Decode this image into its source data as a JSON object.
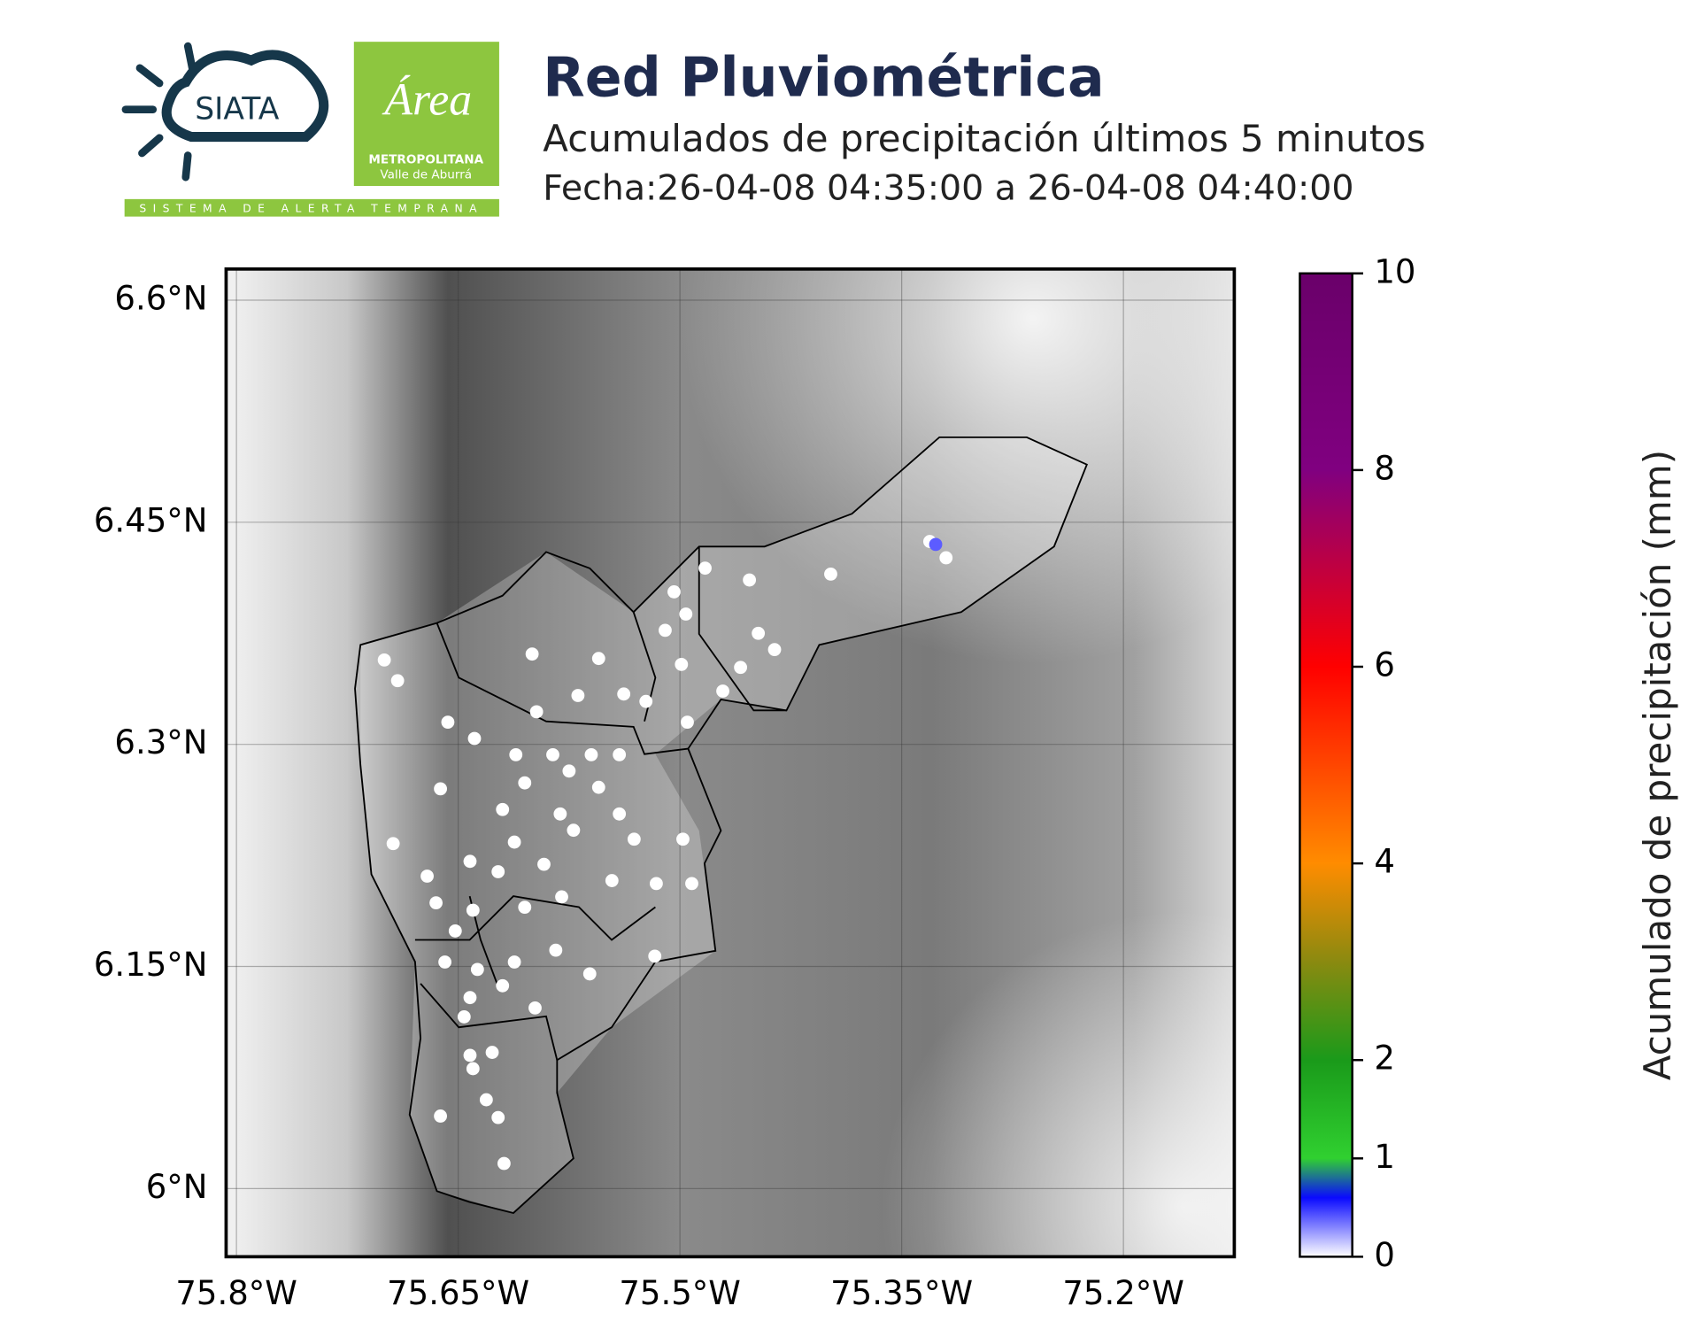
{
  "logos": {
    "siata": "SIATA",
    "area": "Área",
    "metro": "METROPOLITANA",
    "valle": "Valle de Aburrá",
    "sat": "SISTEMA DE ALERTA TEMPRANA"
  },
  "chart_data": {
    "type": "scatter",
    "title": "Red Pluviométrica",
    "subtitle": "Acumulados de precipitación últimos 5 minutos",
    "date": "Fecha:26-04-08 04:35:00 a 26-04-08 04:40:00",
    "x": [
      -75.7,
      -75.691,
      -75.657,
      -75.639,
      -75.611,
      -75.586,
      -75.56,
      -75.541,
      -75.6,
      -75.555,
      -75.597,
      -75.569,
      -75.538,
      -75.523,
      -75.504,
      -75.496,
      -75.51,
      -75.499,
      -75.495,
      -75.483,
      -75.453,
      -75.447,
      -75.436,
      -75.459,
      -75.471,
      -75.398,
      -75.331,
      -75.327,
      -75.32,
      -75.662,
      -75.605,
      -75.575,
      -75.62,
      -75.581,
      -75.541,
      -75.531,
      -75.572,
      -75.612,
      -75.642,
      -75.694,
      -75.671,
      -75.665,
      -75.623,
      -75.58,
      -75.546,
      -75.516,
      -75.498,
      -75.492,
      -75.64,
      -75.605,
      -75.652,
      -75.659,
      -75.637,
      -75.612,
      -75.584,
      -75.561,
      -75.517,
      -75.642,
      -75.62,
      -75.598,
      -75.646,
      -75.642,
      -75.627,
      -75.64,
      -75.631,
      -75.623,
      -75.662,
      -75.619,
      -75.555,
      -75.592
    ],
    "y": [
      6.357,
      6.343,
      6.315,
      6.304,
      6.293,
      6.293,
      6.293,
      6.293,
      6.361,
      6.358,
      6.322,
      6.333,
      6.334,
      6.329,
      6.403,
      6.388,
      6.377,
      6.354,
      6.315,
      6.419,
      6.411,
      6.375,
      6.364,
      6.352,
      6.336,
      6.415,
      6.437,
      6.435,
      6.426,
      6.27,
      6.274,
      6.282,
      6.256,
      6.253,
      6.253,
      6.236,
      6.242,
      6.234,
      6.221,
      6.233,
      6.211,
      6.193,
      6.214,
      6.197,
      6.208,
      6.206,
      6.236,
      6.206,
      6.188,
      6.19,
      6.174,
      6.153,
      6.148,
      6.153,
      6.161,
      6.145,
      6.157,
      6.129,
      6.137,
      6.122,
      6.116,
      6.09,
      6.092,
      6.081,
      6.06,
      6.048,
      6.049,
      6.017,
      6.271,
      6.219
    ],
    "values": [
      0,
      0,
      0,
      0,
      0,
      0,
      0,
      0,
      0,
      0,
      0,
      0,
      0,
      0,
      0,
      0,
      0,
      0,
      0,
      0,
      0,
      0,
      0,
      0,
      0,
      0,
      0,
      0.4,
      0,
      0,
      0,
      0,
      0,
      0,
      0,
      0,
      0,
      0,
      0,
      0,
      0,
      0,
      0,
      0,
      0,
      0,
      0,
      0,
      0,
      0,
      0,
      0,
      0,
      0,
      0,
      0,
      0,
      0,
      0,
      0,
      0,
      0,
      0,
      0,
      0,
      0,
      0,
      0,
      0,
      0
    ],
    "xlim": [
      -75.807,
      -75.125
    ],
    "ylim": [
      5.954,
      6.621
    ],
    "xticks": [
      {
        "value": -75.8,
        "label": "75.8°W"
      },
      {
        "value": -75.65,
        "label": "75.65°W"
      },
      {
        "value": -75.5,
        "label": "75.5°W"
      },
      {
        "value": -75.35,
        "label": "75.35°W"
      },
      {
        "value": -75.2,
        "label": "75.2°W"
      }
    ],
    "yticks": [
      {
        "value": 6.0,
        "label": "6°N"
      },
      {
        "value": 6.15,
        "label": "6.15°N"
      },
      {
        "value": 6.3,
        "label": "6.3°N"
      },
      {
        "value": 6.45,
        "label": "6.45°N"
      },
      {
        "value": 6.6,
        "label": "6.6°N"
      }
    ],
    "grid": true,
    "colorbar": {
      "label": "Acumulado de precipitación (mm)",
      "lim": [
        0,
        10
      ],
      "ticks": [
        0,
        1,
        2,
        4,
        6,
        8,
        10
      ],
      "colormap": [
        [
          0,
          "#ffffff"
        ],
        [
          0.6,
          "#0a0aff"
        ],
        [
          1,
          "#30d030"
        ],
        [
          2,
          "#1a9a1a"
        ],
        [
          3,
          "#8a8a10"
        ],
        [
          4,
          "#ff8c00"
        ],
        [
          6,
          "#ff0000"
        ],
        [
          7,
          "#c00040"
        ],
        [
          8,
          "#800080"
        ],
        [
          10,
          "#6a006a"
        ]
      ]
    }
  }
}
